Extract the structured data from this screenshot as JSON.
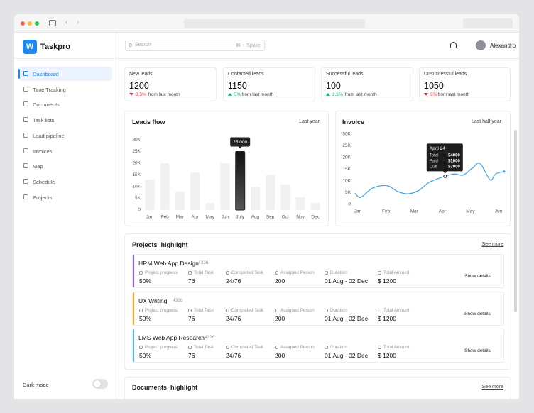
{
  "app": {
    "name": "Taskpro"
  },
  "nav": [
    "Dashboard",
    "Time Tracking",
    "Documents",
    "Task lists",
    "Lead pipeline",
    "Invoices",
    "Map",
    "Schedule",
    "Projects"
  ],
  "dark_mode": "Dark mode",
  "search": {
    "placeholder": "Search",
    "shortcut": "⌘ + Space"
  },
  "user": "Alexandro",
  "stats": [
    {
      "label": "New leads",
      "value": 1200,
      "change": "8.5%",
      "note": "from last month",
      "trend": "down"
    },
    {
      "label": "Contacted leads",
      "value": 1150,
      "change": "5%",
      "note": "from last month",
      "trend": "up"
    },
    {
      "label": "Successful leads",
      "value": 100,
      "change": "2.5%",
      "note": "from last month",
      "trend": "up"
    },
    {
      "label": "Unsuccessful leads",
      "value": 1050,
      "change": "6%",
      "note": "from last month",
      "trend": "down"
    }
  ],
  "leads_flow": {
    "type": "bar",
    "title": "Leads flow",
    "period": "Last year",
    "categories": [
      "Jan",
      "Feb",
      "Mar",
      "Apr",
      "May",
      "Jun",
      "July",
      "Aug",
      "Sep",
      "Oct",
      "Nov",
      "Dec"
    ],
    "values": [
      13000,
      20000,
      8000,
      16000,
      3000,
      20000,
      25000,
      10000,
      15000,
      11000,
      5500,
      3000
    ],
    "value_labels": [
      null,
      null,
      null,
      null,
      null,
      null,
      "25,000",
      null,
      null,
      null,
      null,
      null
    ],
    "color": "#f1f1f3",
    "highlight_color": "#222222",
    "ylim": [
      0,
      30000
    ],
    "yticks": [
      0,
      {
        "value": 5000,
        "label": "5K"
      },
      {
        "value": 10000,
        "label": "10K"
      },
      {
        "value": 15000,
        "label": "15K"
      },
      {
        "value": 20000,
        "label": "20K"
      },
      {
        "value": 25000,
        "label": "25K"
      },
      {
        "value": 30000,
        "label": "30K"
      }
    ]
  },
  "invoice": {
    "type": "line",
    "title": "Invoice",
    "period": "Last half year",
    "x": [
      -0.1,
      0.1,
      0.53,
      1.04,
      1.41,
      1.79,
      2.17,
      2.55,
      3.1,
      3.43,
      3.74,
      4.07,
      4.34,
      4.7,
      4.9,
      5.2
    ],
    "values": [
      4800,
      3000,
      7000,
      8000,
      5500,
      4500,
      6000,
      9500,
      12000,
      13000,
      12500,
      15500,
      17500,
      10500,
      13000,
      14000
    ],
    "color": "#3aa0e8",
    "xlim": [
      -0.1,
      5.2
    ],
    "xticks": [
      {
        "value": 0,
        "label": "Jan"
      },
      {
        "value": 1,
        "label": "Feb"
      },
      {
        "value": 2,
        "label": "Mar"
      },
      {
        "value": 3,
        "label": "Apr"
      },
      {
        "value": 4,
        "label": "May"
      },
      {
        "value": 5,
        "label": "Jun"
      }
    ],
    "ylim": [
      0,
      30000
    ],
    "yticks": [
      0,
      {
        "value": 5000,
        "label": "5K"
      },
      {
        "value": 10000,
        "label": "10K"
      },
      {
        "value": 15000,
        "label": "15K"
      },
      {
        "value": 20000,
        "label": "20K"
      },
      {
        "value": 25000,
        "label": "25K"
      },
      {
        "value": 30000,
        "label": "30K"
      }
    ],
    "tooltip": {
      "title": "April 24",
      "rows": [
        [
          "Total",
          "$4000"
        ],
        [
          "Paid",
          "$1000"
        ],
        [
          "Due",
          "$3000"
        ]
      ]
    }
  },
  "projects": {
    "title": "Projects  highlight",
    "more": "See more",
    "action": "Show details",
    "items": [
      {
        "title": "HRM Web App Design",
        "id": "4326",
        "color": "#8b5cf6",
        "fields": [
          [
            "Project progress",
            "50%"
          ],
          [
            "Total Task",
            "76"
          ],
          [
            "Completed Task",
            "24/76"
          ],
          [
            "Assigned Person",
            "200"
          ],
          [
            "Duration",
            "01 Aug - 02 Dec"
          ],
          [
            "Total Amount",
            "$ 1200"
          ]
        ]
      },
      {
        "title": "UX Writing",
        "id": "4326",
        "color": "#f5a524",
        "fields": [
          [
            "Project progress",
            "50%"
          ],
          [
            "Total Task",
            "76"
          ],
          [
            "Completed Task",
            "24/76"
          ],
          [
            "Assigned Person",
            "200"
          ],
          [
            "Duration",
            "01 Aug - 02 Dec"
          ],
          [
            "Total Amount",
            "$ 1200"
          ]
        ]
      },
      {
        "title": "LMS Web App Research",
        "id": "4326",
        "color": "#4fb3e8",
        "fields": [
          [
            "Project progress",
            "50%"
          ],
          [
            "Total Task",
            "76"
          ],
          [
            "Completed Task",
            "24/76"
          ],
          [
            "Assigned Person",
            "200"
          ],
          [
            "Duration",
            "01 Aug - 02 Dec"
          ],
          [
            "Total Amount",
            "$ 1200"
          ]
        ]
      }
    ]
  },
  "documents": {
    "title": "Documents  highlight",
    "more": "See more"
  }
}
